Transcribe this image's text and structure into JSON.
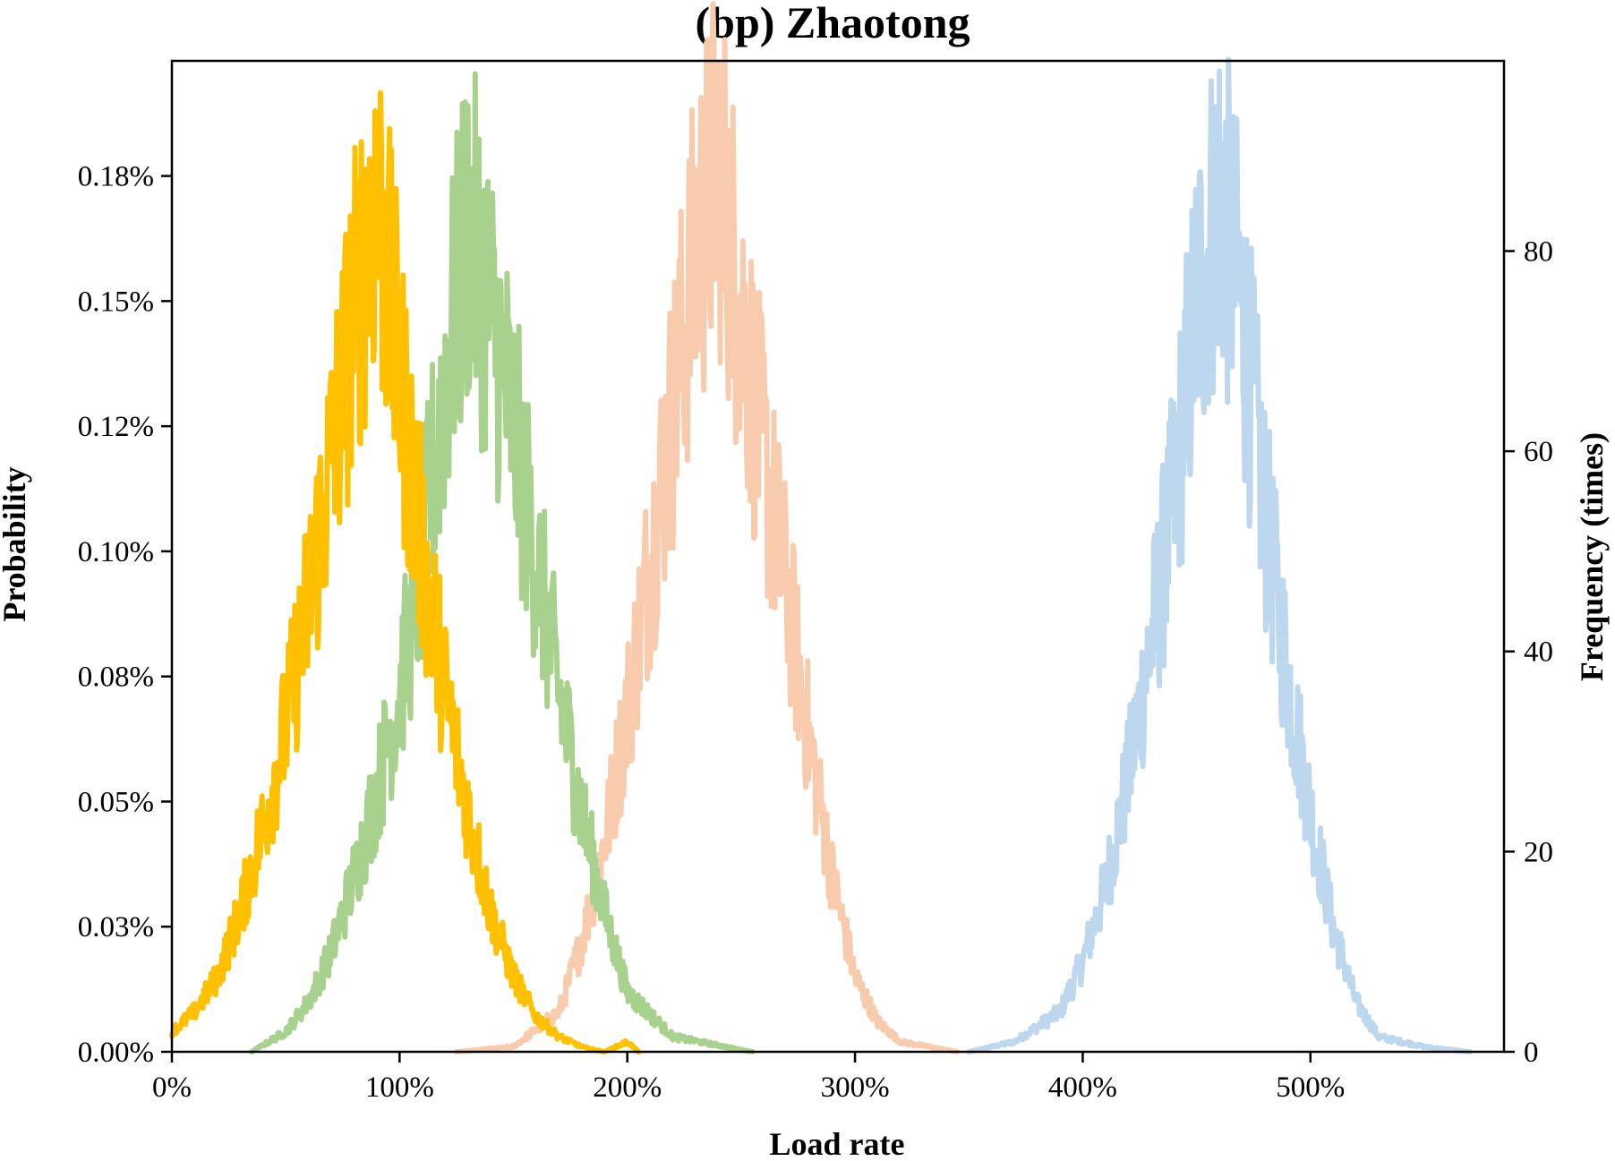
{
  "chart_data": {
    "type": "line",
    "title": "(bp) Zhaotong",
    "xlabel": "Load rate",
    "ylabel": "Probability",
    "y2label": "Frequency (times)",
    "xlim": [
      0,
      5.85
    ],
    "ylim": [
      0,
      0.00198
    ],
    "y2lim": [
      0,
      99
    ],
    "x_ticks": [
      0,
      1,
      2,
      3,
      4,
      5
    ],
    "x_tick_labels": [
      "0%",
      "100%",
      "200%",
      "300%",
      "400%",
      "500%"
    ],
    "y_ticks": [
      0,
      0.00025,
      0.0005,
      0.00075,
      0.001,
      0.00125,
      0.0015,
      0.00175
    ],
    "y_tick_labels": [
      "0.00%",
      "0.03%",
      "0.05%",
      "0.08%",
      "0.10%",
      "0.12%",
      "0.15%",
      "0.18%"
    ],
    "y2_ticks": [
      0,
      20,
      40,
      60,
      80
    ],
    "y2_tick_labels": [
      "0",
      "20",
      "40",
      "60",
      "80"
    ],
    "grid": false,
    "series": [
      {
        "color": "#bdd7ee",
        "x": [
          3.5,
          3.7,
          3.9,
          4.0,
          4.1,
          4.2,
          4.3,
          4.4,
          4.5,
          4.6,
          4.7,
          4.8,
          4.9,
          5.0,
          5.1,
          5.2,
          5.3,
          5.5,
          5.7
        ],
        "y": [
          0.0,
          2e-05,
          8e-05,
          0.00018,
          0.00033,
          0.00055,
          0.00082,
          0.0011,
          0.0015,
          0.00172,
          0.00148,
          0.00108,
          0.00075,
          0.00048,
          0.00025,
          0.0001,
          3e-05,
          1e-05,
          0.0
        ]
      },
      {
        "color": "#f8cbad",
        "x": [
          1.25,
          1.5,
          1.7,
          1.8,
          1.9,
          2.0,
          2.1,
          2.2,
          2.3,
          2.4,
          2.5,
          2.6,
          2.7,
          2.8,
          2.9,
          3.0,
          3.1,
          3.2,
          3.45
        ],
        "y": [
          0.0,
          1e-05,
          8e-05,
          0.00022,
          0.00042,
          0.00068,
          0.00098,
          0.00128,
          0.0016,
          0.00178,
          0.00148,
          0.00118,
          0.00092,
          0.00062,
          0.00035,
          0.00015,
          6e-05,
          2e-05,
          0.0
        ]
      },
      {
        "color": "#a9d18e",
        "x": [
          0.35,
          0.5,
          0.6,
          0.7,
          0.8,
          0.9,
          1.0,
          1.1,
          1.2,
          1.3,
          1.4,
          1.5,
          1.6,
          1.7,
          1.8,
          1.9,
          2.0,
          2.2,
          2.55
        ],
        "y": [
          0.0,
          4e-05,
          0.0001,
          0.0002,
          0.00035,
          0.00052,
          0.00072,
          0.00098,
          0.00135,
          0.00165,
          0.00148,
          0.00125,
          0.00098,
          0.00072,
          0.00048,
          0.00028,
          0.00012,
          3e-05,
          0.0
        ]
      },
      {
        "color": "#ffc000",
        "x": [
          0.0,
          0.1,
          0.2,
          0.3,
          0.4,
          0.5,
          0.6,
          0.7,
          0.8,
          0.9,
          1.0,
          1.1,
          1.2,
          1.3,
          1.4,
          1.5,
          1.6,
          1.7,
          1.8,
          1.9,
          2.0,
          2.05
        ],
        "y": [
          4e-05,
          8e-05,
          0.00015,
          0.00028,
          0.00045,
          0.00065,
          0.0009,
          0.00118,
          0.00148,
          0.00172,
          0.00135,
          0.001,
          0.00072,
          0.00048,
          0.00028,
          0.00015,
          7e-05,
          3e-05,
          1e-05,
          0.0,
          2e-05,
          0.0
        ]
      }
    ]
  }
}
